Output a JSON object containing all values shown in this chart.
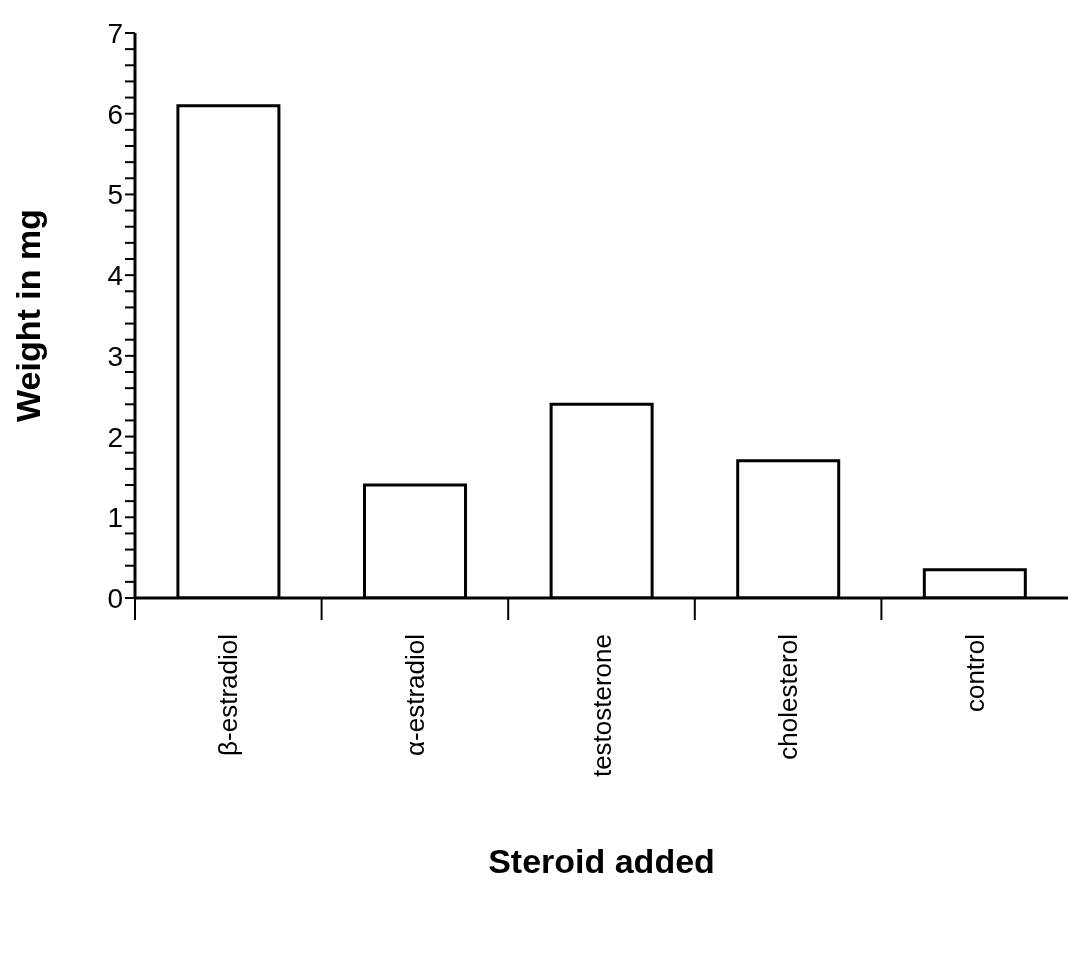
{
  "chart_data": {
    "type": "bar",
    "xlabel": "Steroid added",
    "ylabel": "Weight in mg",
    "categories": [
      "β-estradiol",
      "α-estradiol",
      "testosterone",
      "cholesterol",
      "control"
    ],
    "values": [
      6.1,
      1.4,
      2.4,
      1.7,
      0.35
    ],
    "color": "#ffffff",
    "ylim": [
      0,
      7
    ],
    "yticks": [
      0,
      {
        "value": 0.2,
        "label": null
      },
      {
        "value": 0.4,
        "label": null
      },
      {
        "value": 0.6,
        "label": null
      },
      {
        "value": 0.8,
        "label": null
      },
      1,
      {
        "value": 1.2,
        "label": null
      },
      {
        "value": 1.4,
        "label": null
      },
      {
        "value": 1.6,
        "label": null
      },
      {
        "value": 1.8,
        "label": null
      },
      2,
      {
        "value": 2.2,
        "label": null
      },
      {
        "value": 2.4,
        "label": null
      },
      {
        "value": 2.6,
        "label": null
      },
      {
        "value": 2.8,
        "label": null
      },
      3,
      {
        "value": 3.2,
        "label": null
      },
      {
        "value": 3.4,
        "label": null
      },
      {
        "value": 3.6,
        "label": null
      },
      {
        "value": 3.8,
        "label": null
      },
      4,
      {
        "value": 4.2,
        "label": null
      },
      {
        "value": 4.4,
        "label": null
      },
      {
        "value": 4.6,
        "label": null
      },
      {
        "value": 4.8,
        "label": null
      },
      5,
      {
        "value": 5.2,
        "label": null
      },
      {
        "value": 5.4,
        "label": null
      },
      {
        "value": 5.6,
        "label": null
      },
      {
        "value": 5.8,
        "label": null
      },
      6,
      {
        "value": 6.2,
        "label": null
      },
      {
        "value": 6.4,
        "label": null
      },
      {
        "value": 6.6,
        "label": null
      },
      {
        "value": 6.8,
        "label": null
      },
      7
    ],
    "grid": false,
    "legend": false
  }
}
